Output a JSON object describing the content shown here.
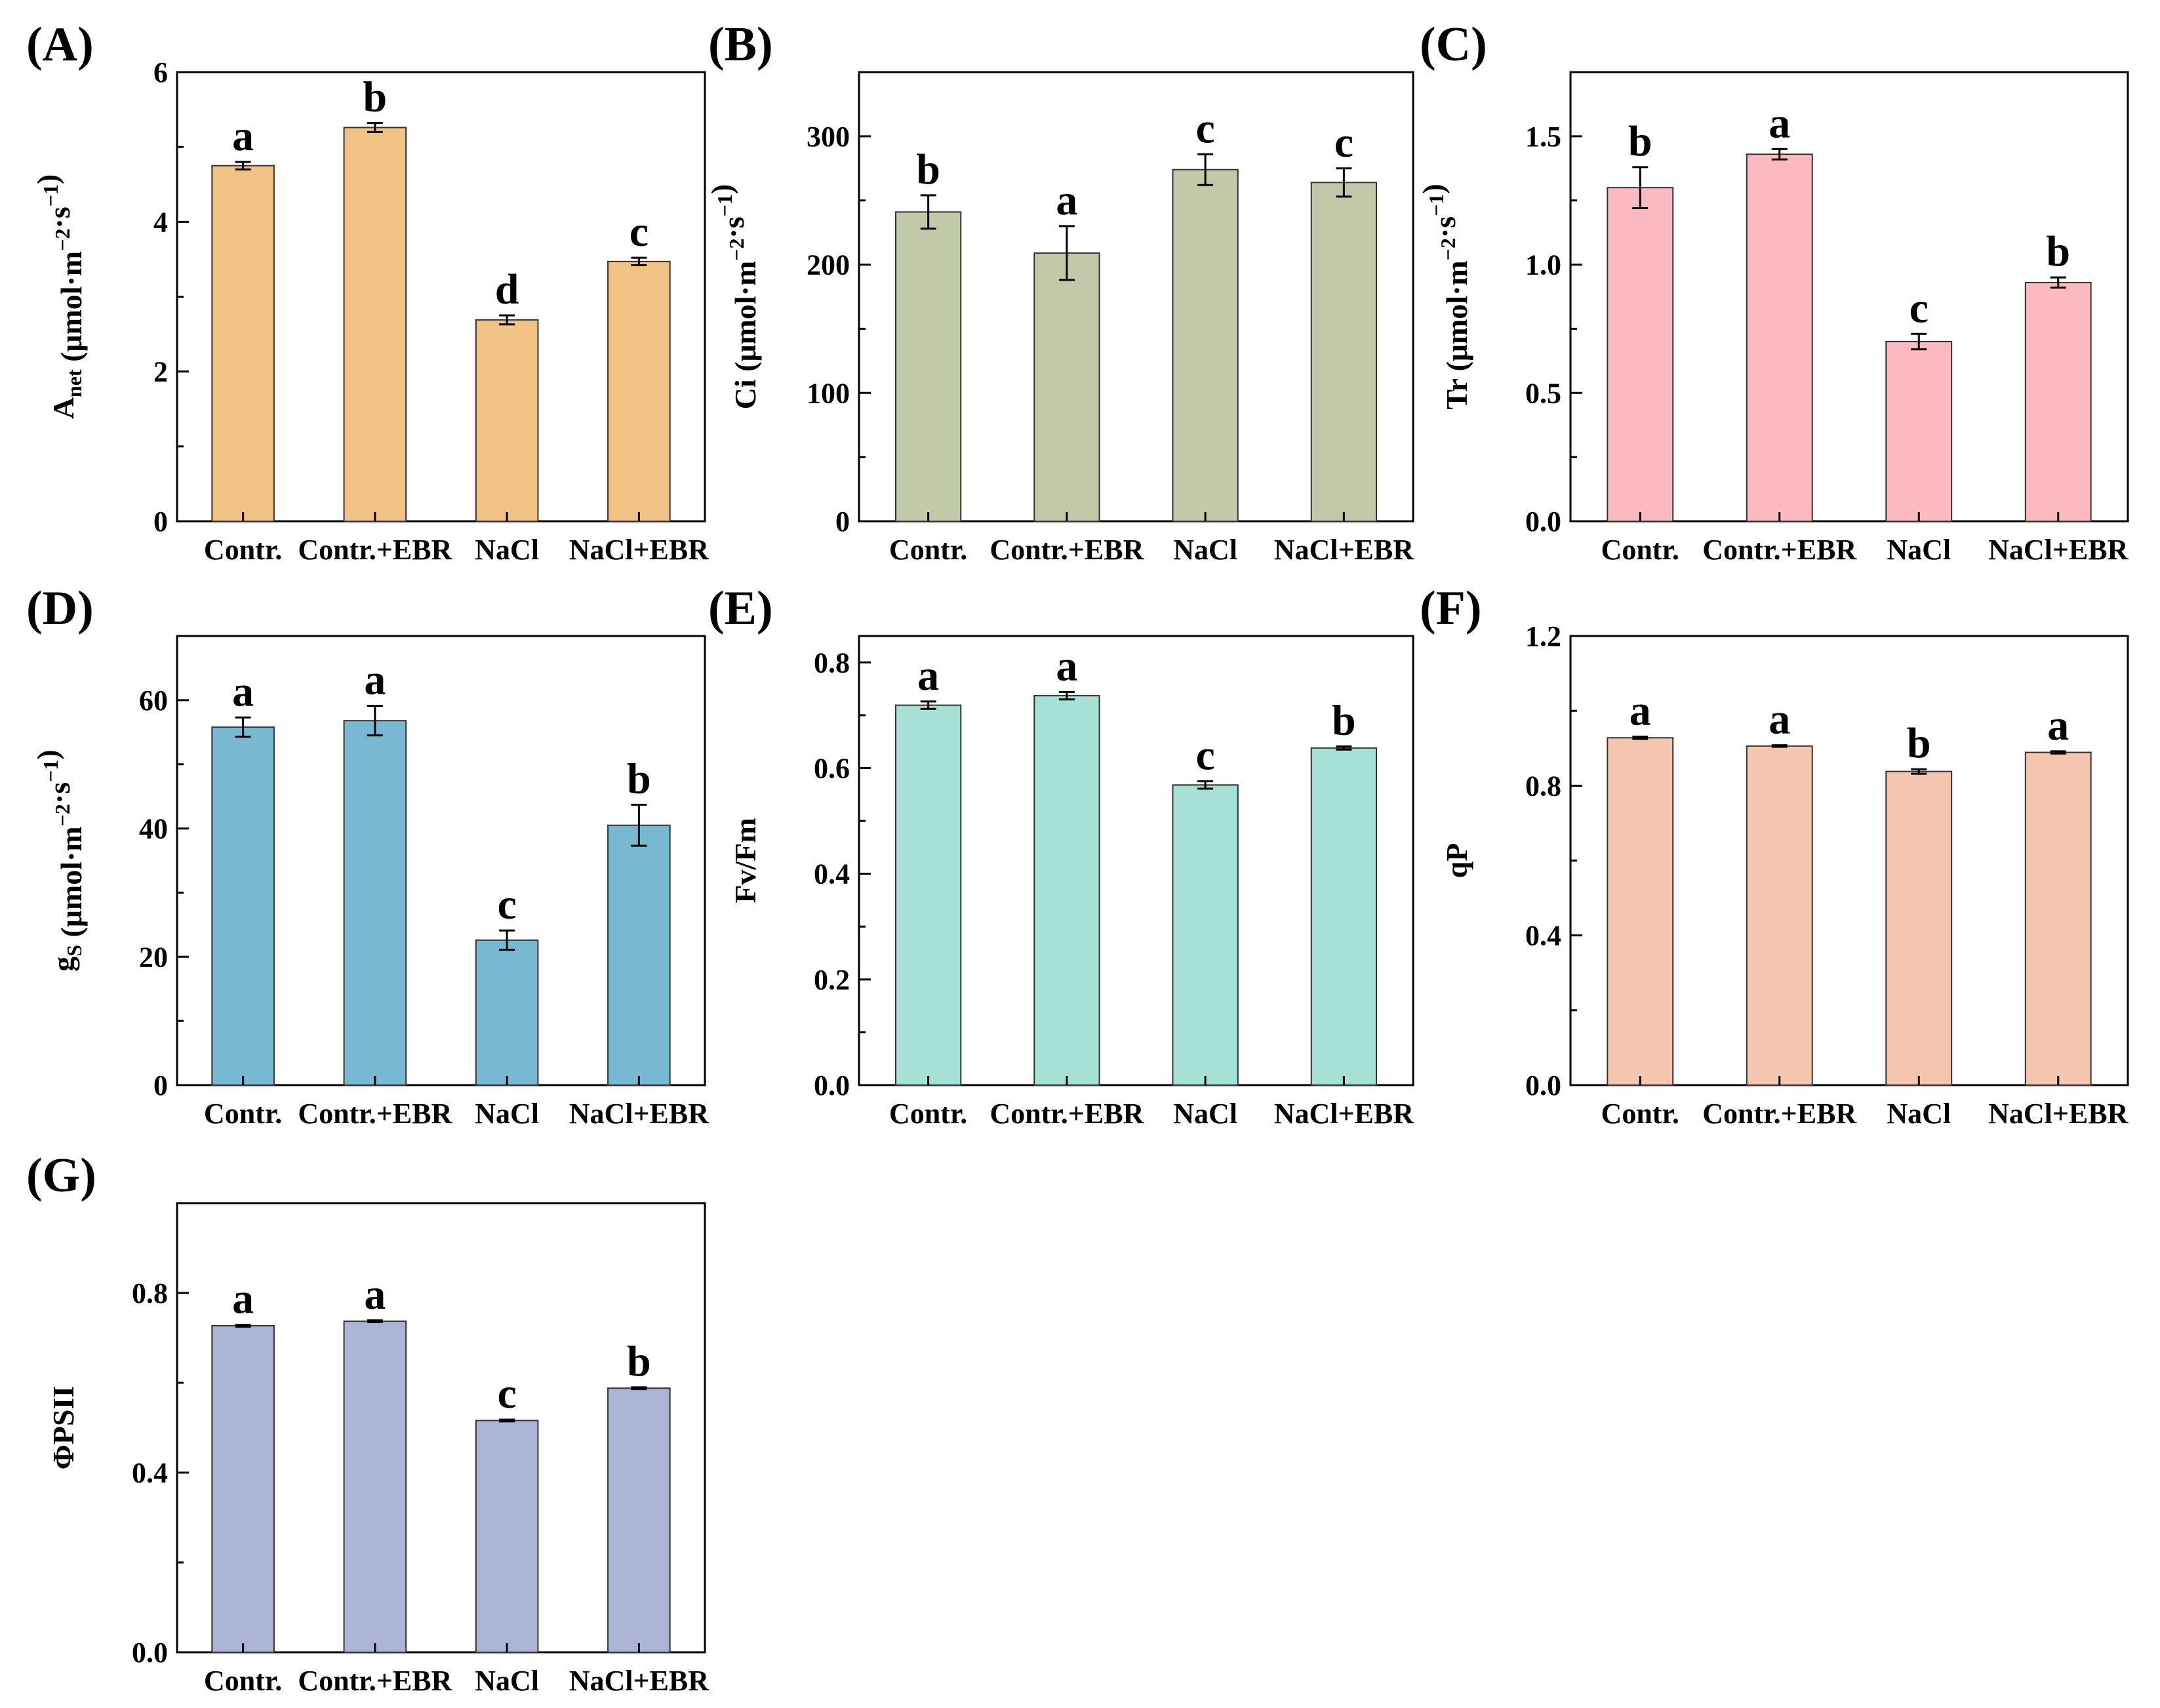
{
  "chart_data": [
    {
      "panel": "(A)",
      "type": "bar",
      "ylabel_parts": [
        {
          "text": "A",
          "s": "normal"
        },
        {
          "text": "net",
          "s": "sub"
        },
        {
          "text": " (μmol·m",
          "s": "normal"
        },
        {
          "text": "−2",
          "s": "sup"
        },
        {
          "text": "·s",
          "s": "normal"
        },
        {
          "text": "−1",
          "s": "sup"
        },
        {
          "text": ")",
          "s": "normal"
        }
      ],
      "categories": [
        "Contr.",
        "Contr.+EBR",
        "NaCl",
        "NaCl+EBR"
      ],
      "values": [
        4.75,
        5.26,
        2.69,
        3.47
      ],
      "errors": [
        0.05,
        0.06,
        0.06,
        0.05
      ],
      "letters": [
        "a",
        "b",
        "d",
        "c"
      ],
      "ylim": [
        0,
        6
      ],
      "yticks": [
        0,
        2,
        4,
        6
      ],
      "ytick_labels": [
        "0",
        "2",
        "4",
        "6"
      ],
      "color": "#F0C283"
    },
    {
      "panel": "(B)",
      "type": "bar",
      "ylabel_parts": [
        {
          "text": "Ci (μmol·m",
          "s": "normal"
        },
        {
          "text": "−2",
          "s": "sup"
        },
        {
          "text": "·s",
          "s": "normal"
        },
        {
          "text": "−1",
          "s": "sup"
        },
        {
          "text": ")",
          "s": "normal"
        }
      ],
      "categories": [
        "Contr.",
        "Contr.+EBR",
        "NaCl",
        "NaCl+EBR"
      ],
      "values": [
        241,
        209,
        274,
        264
      ],
      "errors": [
        13,
        21,
        12,
        11
      ],
      "letters": [
        "b",
        "a",
        "c",
        "c"
      ],
      "ylim": [
        0,
        350
      ],
      "yticks": [
        0,
        100,
        200,
        300
      ],
      "ytick_labels": [
        "0",
        "100",
        "200",
        "300"
      ],
      "color": "#C2C9A9"
    },
    {
      "panel": "(C)",
      "type": "bar",
      "ylabel_parts": [
        {
          "text": "Tr (μmol·m",
          "s": "normal"
        },
        {
          "text": "−2",
          "s": "sup"
        },
        {
          "text": "·s",
          "s": "normal"
        },
        {
          "text": "−1",
          "s": "sup"
        },
        {
          "text": ")",
          "s": "normal"
        }
      ],
      "categories": [
        "Contr.",
        "Contr.+EBR",
        "NaCl",
        "NaCl+EBR"
      ],
      "values": [
        1.3,
        1.43,
        0.7,
        0.93
      ],
      "errors": [
        0.08,
        0.02,
        0.03,
        0.02
      ],
      "letters": [
        "b",
        "a",
        "c",
        "b"
      ],
      "ylim": [
        0,
        1.75
      ],
      "yticks": [
        0,
        0.5,
        1,
        1.5
      ],
      "ytick_labels": [
        "0.0",
        "0.5",
        "1.0",
        "1.5"
      ],
      "color": "#FDBAC0"
    },
    {
      "panel": "(D)",
      "type": "bar",
      "ylabel_parts": [
        {
          "text": "g",
          "s": "normal"
        },
        {
          "text": "S",
          "s": "sub"
        },
        {
          "text": " (μmol·m",
          "s": "normal"
        },
        {
          "text": "−2",
          "s": "sup"
        },
        {
          "text": "·s",
          "s": "normal"
        },
        {
          "text": "−1",
          "s": "sup"
        },
        {
          "text": ")",
          "s": "normal"
        }
      ],
      "categories": [
        "Contr.",
        "Contr.+EBR",
        "NaCl",
        "NaCl+EBR"
      ],
      "values": [
        55.8,
        56.8,
        22.6,
        40.5
      ],
      "errors": [
        1.5,
        2.3,
        1.5,
        3.2
      ],
      "letters": [
        "a",
        "a",
        "c",
        "b"
      ],
      "ylim": [
        0,
        70
      ],
      "yticks": [
        0,
        20,
        40,
        60
      ],
      "ytick_labels": [
        "0",
        "20",
        "40",
        "60"
      ],
      "color": "#78B8D3"
    },
    {
      "panel": "(E)",
      "type": "bar",
      "ylabel_parts": [
        {
          "text": "Fv/Fm",
          "s": "normal"
        }
      ],
      "categories": [
        "Contr.",
        "Contr.+EBR",
        "NaCl",
        "NaCl+EBR"
      ],
      "values": [
        0.719,
        0.737,
        0.568,
        0.638
      ],
      "errors": [
        0.007,
        0.007,
        0.007,
        0.003
      ],
      "letters": [
        "a",
        "a",
        "c",
        "b"
      ],
      "ylim": [
        0,
        0.85
      ],
      "yticks": [
        0,
        0.2,
        0.4,
        0.6,
        0.8
      ],
      "ytick_labels": [
        "0.0",
        "0.2",
        "0.4",
        "0.6",
        "0.8"
      ],
      "color": "#A5E1D5"
    },
    {
      "panel": "(F)",
      "type": "bar",
      "ylabel_parts": [
        {
          "text": "qP",
          "s": "normal"
        }
      ],
      "categories": [
        "Contr.",
        "Contr.+EBR",
        "NaCl",
        "NaCl+EBR"
      ],
      "values": [
        0.928,
        0.906,
        0.838,
        0.889
      ],
      "errors": [
        0.003,
        0.002,
        0.006,
        0.003
      ],
      "letters": [
        "a",
        "a",
        "b",
        "a"
      ],
      "ylim": [
        0,
        1.2
      ],
      "yticks": [
        0,
        0.4,
        0.8,
        1.2
      ],
      "ytick_labels": [
        "0.0",
        "0.4",
        "0.8",
        "1.2"
      ],
      "color": "#F4C6AE"
    },
    {
      "panel": "(G)",
      "type": "bar",
      "ylabel_parts": [
        {
          "text": "ΦPSII",
          "s": "normal"
        }
      ],
      "categories": [
        "Contr.",
        "Contr.+EBR",
        "NaCl",
        "NaCl+EBR"
      ],
      "values": [
        0.727,
        0.737,
        0.516,
        0.588
      ],
      "errors": [
        0.002,
        0.002,
        0.002,
        0.002
      ],
      "letters": [
        "a",
        "a",
        "c",
        "b"
      ],
      "ylim": [
        0,
        1
      ],
      "yticks": [
        0,
        0.4,
        0.8
      ],
      "ytick_labels": [
        "0.0",
        "0.4",
        "0.8"
      ],
      "color": "#ACB4D6"
    }
  ]
}
